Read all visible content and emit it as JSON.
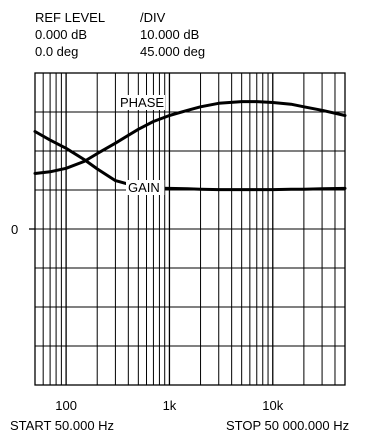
{
  "header": {
    "col1_title": "REF LEVEL",
    "col2_title": "/DIV",
    "gain_ref": "0.000 dB",
    "gain_div": "10.000 dB",
    "phase_ref": "0.0 deg",
    "phase_div": "45.000 deg"
  },
  "footer": {
    "start": "START  50.000 Hz",
    "stop": "STOP  50 000.000 Hz"
  },
  "chart_data": {
    "type": "line",
    "x_scale": "log",
    "xlim": [
      50,
      50000
    ],
    "x_ticks": [
      {
        "value": 100,
        "label": "100"
      },
      {
        "value": 1000,
        "label": "1k"
      },
      {
        "value": 10000,
        "label": "10k"
      }
    ],
    "y_divisions": 8,
    "ref_marker": {
      "label": "0",
      "division_from_top": 4
    },
    "grid": true,
    "series": [
      {
        "name": "PHASE",
        "y_unit": "deg",
        "y_per_div": 45,
        "x": [
          50,
          70,
          100,
          150,
          200,
          300,
          500,
          700,
          1000,
          1500,
          2000,
          3000,
          5000,
          7000,
          10000,
          15000,
          20000,
          30000,
          50000
        ],
        "y": [
          64,
          66,
          70,
          78,
          87,
          99,
          115,
          124,
          131,
          137,
          141,
          145,
          147,
          147,
          146,
          144,
          141,
          137,
          131
        ]
      },
      {
        "name": "GAIN",
        "y_unit": "dB",
        "y_per_div": 10,
        "x": [
          50,
          70,
          100,
          150,
          200,
          300,
          500,
          700,
          1000,
          1500,
          2000,
          3000,
          5000,
          7000,
          10000,
          15000,
          20000,
          30000,
          50000
        ],
        "y": [
          25,
          22.8,
          20.7,
          17.8,
          15.4,
          12.4,
          10.8,
          10.5,
          10.4,
          10.3,
          10.2,
          10.1,
          10.1,
          10.1,
          10.1,
          10.2,
          10.2,
          10.3,
          10.4
        ]
      }
    ]
  }
}
